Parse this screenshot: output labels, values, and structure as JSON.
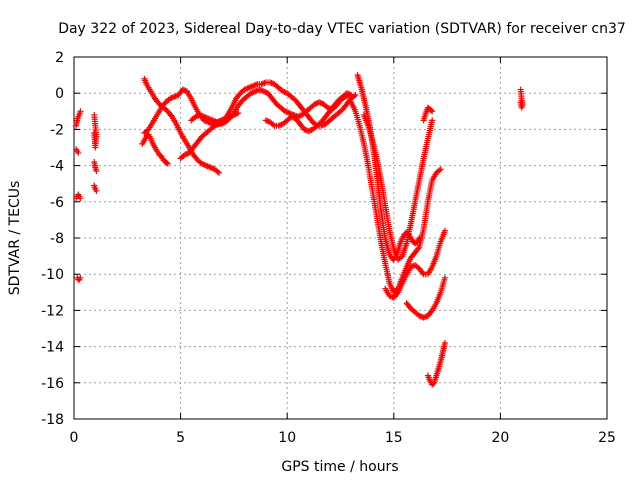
{
  "chart_data": {
    "type": "scatter",
    "title": "Day 322 of 2023, Sidereal Day-to-day VTEC variation (SDTVAR) for receiver cn37",
    "xlabel": "GPS time / hours",
    "ylabel": "SDTVAR / TECUs",
    "xlim": [
      0,
      25
    ],
    "ylim": [
      -18,
      2
    ],
    "xticks": [
      0,
      5,
      10,
      15,
      20,
      25
    ],
    "yticks": [
      2,
      0,
      -2,
      -4,
      -6,
      -8,
      -10,
      -12,
      -14,
      -16,
      -18
    ],
    "grid": true,
    "marker": "plus",
    "colors": {
      "points": "#ff0000",
      "grid": "#a0a0a0",
      "axes": "#000000"
    },
    "series": [
      {
        "name": "s1",
        "x": [
          0.1,
          0.15,
          0.2,
          0.25,
          0.3
        ],
        "y": [
          -1.8,
          -1.5,
          -1.3,
          -1.2,
          -1.0
        ]
      },
      {
        "name": "s2",
        "x": [
          0.1,
          0.15,
          0.2
        ],
        "y": [
          -3.1,
          -3.2,
          -3.3
        ]
      },
      {
        "name": "s3",
        "x": [
          0.1,
          0.15,
          0.2,
          0.25,
          0.3
        ],
        "y": [
          -5.8,
          -5.7,
          -5.6,
          -5.7,
          -5.8
        ]
      },
      {
        "name": "s4",
        "x": [
          0.15,
          0.2,
          0.25,
          0.3
        ],
        "y": [
          -10.2,
          -10.3,
          -10.3,
          -10.2
        ]
      },
      {
        "name": "s5",
        "x": [
          0.95,
          1.0,
          1.05,
          1.0,
          0.95
        ],
        "y": [
          -1.2,
          -1.8,
          -2.4,
          -3.0,
          -2.2
        ]
      },
      {
        "name": "s6",
        "x": [
          0.95,
          1.0,
          1.05
        ],
        "y": [
          -3.8,
          -4.1,
          -4.3
        ]
      },
      {
        "name": "s7",
        "x": [
          0.95,
          1.0,
          1.05
        ],
        "y": [
          -5.1,
          -5.3,
          -5.4
        ]
      },
      {
        "name": "s8",
        "x": [
          3.3,
          3.4,
          3.5,
          3.6,
          3.7,
          3.8,
          4.0,
          4.2,
          4.4,
          4.6,
          4.8,
          5.0,
          5.2,
          5.4,
          5.6,
          5.8,
          6.0,
          6.2,
          6.4,
          6.6,
          6.8
        ],
        "y": [
          0.8,
          0.5,
          0.3,
          0.1,
          -0.1,
          -0.3,
          -0.6,
          -0.8,
          -1.0,
          -1.3,
          -1.7,
          -2.2,
          -2.6,
          -3.0,
          -3.4,
          -3.7,
          -3.9,
          -4.0,
          -4.1,
          -4.2,
          -4.4
        ]
      },
      {
        "name": "s9",
        "x": [
          3.3,
          3.5,
          3.7,
          3.9,
          4.1,
          4.3,
          4.5,
          4.7,
          4.9,
          5.1,
          5.3,
          5.5,
          5.7,
          5.9,
          6.1,
          6.3,
          6.5,
          6.7,
          6.9,
          7.1,
          7.3,
          7.5,
          7.7
        ],
        "y": [
          -2.2,
          -2.0,
          -1.6,
          -1.2,
          -0.8,
          -0.5,
          -0.3,
          -0.2,
          -0.1,
          0.2,
          0.1,
          -0.3,
          -0.8,
          -1.2,
          -1.5,
          -1.6,
          -1.7,
          -1.6,
          -1.5,
          -1.4,
          -1.3,
          -1.2,
          -1.1
        ]
      },
      {
        "name": "s10",
        "x": [
          3.2,
          3.3,
          3.4,
          3.5,
          3.6,
          3.7,
          3.8,
          3.9,
          4.0,
          4.1,
          4.2,
          4.3,
          4.4
        ],
        "y": [
          -2.8,
          -2.6,
          -2.4,
          -2.3,
          -2.5,
          -2.8,
          -3.0,
          -3.2,
          -3.4,
          -3.5,
          -3.7,
          -3.8,
          -3.9
        ]
      },
      {
        "name": "s11",
        "x": [
          5.0,
          5.2,
          5.4,
          5.6,
          5.8,
          6.0,
          6.2,
          6.4,
          6.6,
          6.8,
          7.0,
          7.2,
          7.4,
          7.6,
          7.8,
          8.0,
          8.2,
          8.4,
          8.6,
          8.8,
          9.0,
          9.2,
          9.4,
          9.6,
          9.8,
          10.0,
          10.2,
          10.4,
          10.6,
          10.8,
          11.0,
          11.2,
          11.4,
          11.6,
          11.8,
          12.0,
          12.2,
          12.4,
          12.6,
          12.8,
          13.0,
          13.2
        ],
        "y": [
          -3.6,
          -3.4,
          -3.3,
          -3.0,
          -2.7,
          -2.4,
          -2.2,
          -2.0,
          -1.8,
          -1.7,
          -1.6,
          -1.2,
          -0.8,
          -0.3,
          0.0,
          0.2,
          0.3,
          0.4,
          0.5,
          0.5,
          0.6,
          0.6,
          0.5,
          0.3,
          0.1,
          0.0,
          -0.2,
          -0.4,
          -0.7,
          -1.0,
          -1.3,
          -1.6,
          -1.8,
          -1.8,
          -1.7,
          -1.5,
          -1.3,
          -1.1,
          -0.9,
          -0.6,
          -0.3,
          -0.1
        ]
      },
      {
        "name": "s12",
        "x": [
          5.5,
          5.7,
          5.9,
          6.1,
          6.3,
          6.5,
          6.7,
          6.9,
          7.1,
          7.3,
          7.5,
          7.7,
          7.9,
          8.1,
          8.3,
          8.5,
          8.7,
          8.9,
          9.1,
          9.3,
          9.5,
          9.7,
          9.9,
          10.1,
          10.3,
          10.5,
          10.7,
          10.9,
          11.1,
          11.3,
          11.5,
          11.7,
          11.9,
          12.1,
          12.3,
          12.5,
          12.7,
          12.9
        ],
        "y": [
          -1.5,
          -1.3,
          -1.2,
          -1.3,
          -1.4,
          -1.5,
          -1.6,
          -1.7,
          -1.6,
          -1.4,
          -1.1,
          -0.7,
          -0.4,
          -0.2,
          0.0,
          0.1,
          0.2,
          0.1,
          0.0,
          -0.3,
          -0.6,
          -0.8,
          -1.0,
          -1.1,
          -1.2,
          -1.3,
          -1.2,
          -1.0,
          -0.8,
          -0.6,
          -0.5,
          -0.6,
          -0.8,
          -0.9,
          -0.7,
          -0.4,
          -0.2,
          -0.1
        ]
      },
      {
        "name": "s13",
        "x": [
          9.0,
          9.2,
          9.4,
          9.6,
          9.8,
          10.0,
          10.2,
          10.4,
          10.6,
          10.8,
          11.0,
          11.2,
          11.4,
          11.6,
          11.8,
          12.0,
          12.2,
          12.4,
          12.6,
          12.8,
          13.0
        ],
        "y": [
          -1.5,
          -1.6,
          -1.8,
          -1.8,
          -1.7,
          -1.5,
          -1.3,
          -1.4,
          -1.7,
          -2.0,
          -2.1,
          -2.0,
          -1.8,
          -1.6,
          -1.3,
          -1.0,
          -0.7,
          -0.4,
          -0.2,
          0.0,
          -0.1
        ]
      },
      {
        "name": "s14",
        "x": [
          13.3,
          13.4,
          13.5,
          13.6,
          13.7,
          13.8,
          13.9,
          14.0,
          14.1,
          14.2,
          14.3,
          14.4,
          14.5,
          14.6,
          14.7,
          14.8,
          14.9,
          15.0,
          15.1,
          15.2,
          15.3,
          15.4,
          15.5,
          15.6,
          15.7,
          15.8,
          15.9,
          16.0,
          16.1,
          16.2
        ],
        "y": [
          1.0,
          0.6,
          0.2,
          -0.3,
          -0.8,
          -1.4,
          -2.0,
          -2.8,
          -3.6,
          -4.5,
          -5.5,
          -6.5,
          -7.3,
          -8.0,
          -8.5,
          -8.9,
          -9.1,
          -9.2,
          -9.0,
          -8.7,
          -8.3,
          -8.0,
          -7.8,
          -7.7,
          -7.8,
          -8.0,
          -8.2,
          -8.3,
          -8.2,
          -8.0
        ]
      },
      {
        "name": "s15",
        "x": [
          13.0,
          13.2,
          13.4,
          13.6,
          13.8,
          14.0,
          14.2,
          14.4,
          14.6,
          14.8,
          15.0,
          15.2,
          15.4,
          15.6,
          15.8,
          16.0,
          16.2,
          16.4,
          16.6,
          16.8,
          17.0,
          17.2
        ],
        "y": [
          -0.5,
          -1.0,
          -1.8,
          -2.8,
          -4.0,
          -5.4,
          -6.8,
          -8.2,
          -9.4,
          -10.5,
          -11.0,
          -10.8,
          -10.2,
          -9.6,
          -9.1,
          -8.8,
          -8.5,
          -7.5,
          -6.0,
          -4.8,
          -4.4,
          -4.2
        ]
      },
      {
        "name": "s16",
        "x": [
          13.6,
          13.8,
          14.0,
          14.2,
          14.4,
          14.6,
          14.8,
          15.0,
          15.2,
          15.4,
          15.6,
          15.8,
          16.0,
          16.2,
          16.4,
          16.6,
          16.8
        ],
        "y": [
          -1.2,
          -1.8,
          -2.6,
          -3.6,
          -4.8,
          -6.2,
          -7.6,
          -8.6,
          -9.2,
          -9.0,
          -8.3,
          -7.2,
          -6.0,
          -4.8,
          -3.6,
          -2.5,
          -1.5
        ]
      },
      {
        "name": "s17",
        "x": [
          14.6,
          14.8,
          15.0,
          15.2,
          15.4,
          15.6,
          15.8,
          16.0,
          16.2,
          16.4,
          16.6,
          16.8,
          17.0,
          17.2,
          17.4
        ],
        "y": [
          -10.8,
          -11.2,
          -11.3,
          -11.0,
          -10.5,
          -10.0,
          -9.6,
          -9.5,
          -9.7,
          -10.0,
          -10.0,
          -9.6,
          -9.0,
          -8.2,
          -7.6
        ]
      },
      {
        "name": "s18",
        "x": [
          15.6,
          15.8,
          16.0,
          16.2,
          16.4,
          16.6,
          16.8,
          17.0,
          17.2,
          17.4
        ],
        "y": [
          -11.6,
          -11.9,
          -12.1,
          -12.3,
          -12.4,
          -12.3,
          -12.0,
          -11.6,
          -11.0,
          -10.2
        ]
      },
      {
        "name": "s19",
        "x": [
          16.6,
          16.7,
          16.8,
          16.9,
          17.0,
          17.1,
          17.2,
          17.3,
          17.4
        ],
        "y": [
          -15.6,
          -15.9,
          -16.1,
          -16.0,
          -15.6,
          -15.2,
          -14.8,
          -14.3,
          -13.8
        ]
      },
      {
        "name": "s20",
        "x": [
          16.4,
          16.5,
          16.6,
          16.7,
          16.8
        ],
        "y": [
          -1.5,
          -1.1,
          -0.8,
          -0.9,
          -1.0
        ]
      },
      {
        "name": "s21",
        "x": [
          20.95,
          21.0,
          21.05,
          21.0,
          20.95
        ],
        "y": [
          0.2,
          -0.4,
          -0.6,
          -0.8,
          -0.5
        ]
      }
    ]
  }
}
